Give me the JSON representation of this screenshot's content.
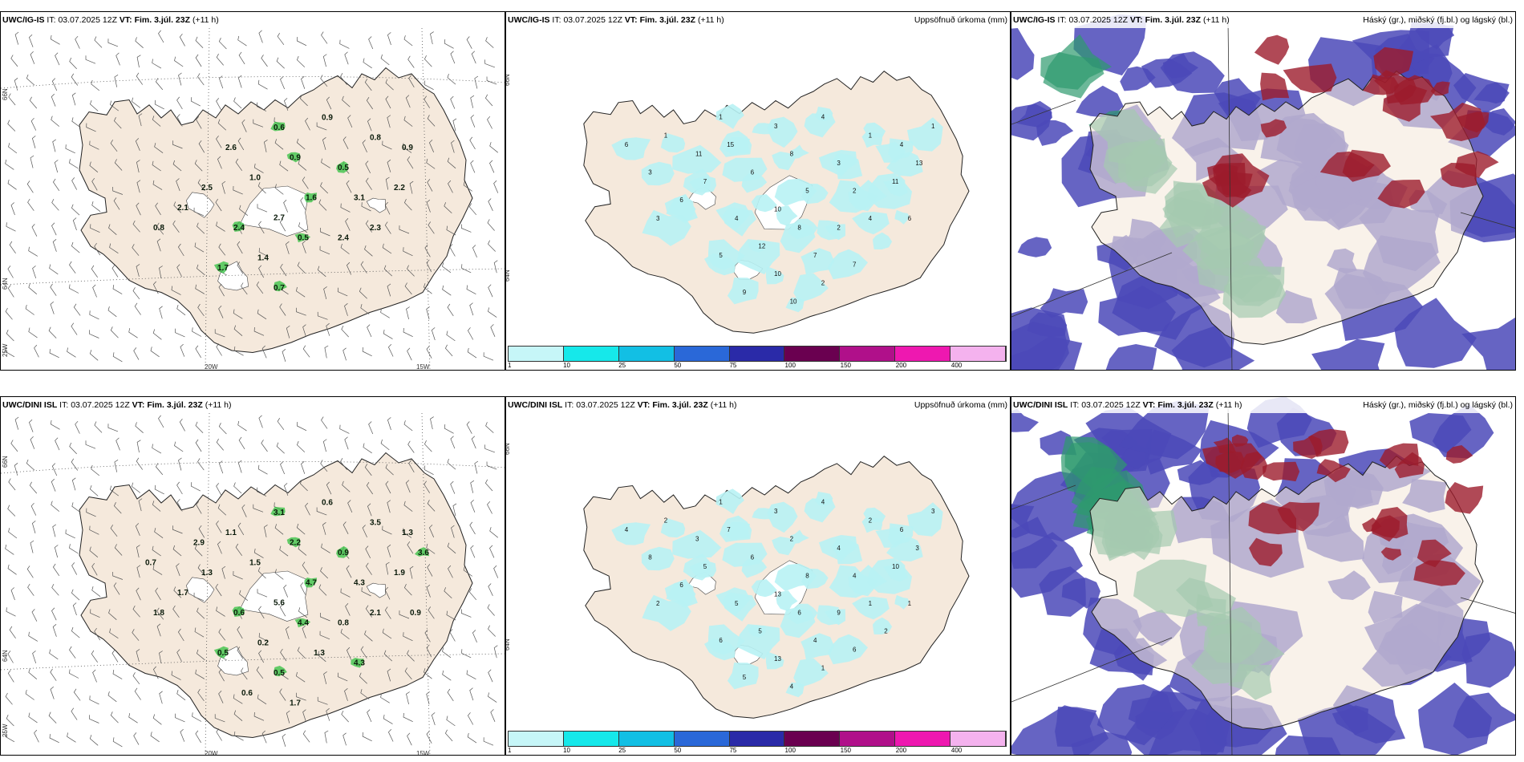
{
  "panels": [
    {
      "id": "p1",
      "model": "UWC/IG-IS",
      "it_label": "IT:",
      "it": "03.07.2025 12Z",
      "vt_label": "VT:",
      "vt": "Fim. 3.júl. 23Z",
      "lead": "(+11 h)",
      "right": ""
    },
    {
      "id": "p2",
      "model": "UWC/IG-IS",
      "it_label": "IT:",
      "it": "03.07.2025 12Z",
      "vt_label": "VT:",
      "vt": "Fim. 3.júl. 23Z",
      "lead": "(+11 h)",
      "right": "Uppsöfnuð úrkoma (mm)"
    },
    {
      "id": "p3",
      "model": "UWC/IG-IS",
      "it_label": "IT:",
      "it": "03.07.2025 12Z",
      "vt_label": "VT:",
      "vt": "Fim. 3.júl. 23Z",
      "lead": "(+11 h)",
      "right": "Háský (gr.), miðský (fj.bl.) og lágský (bl.)"
    },
    {
      "id": "p4",
      "model": "UWC/DINI ISL",
      "it_label": "IT:",
      "it": "03.07.2025 12Z",
      "vt_label": "VT:",
      "vt": "Fim. 3.júl. 23Z",
      "lead": "(+11 h)",
      "right": ""
    },
    {
      "id": "p5",
      "model": "UWC/DINI ISL",
      "it_label": "IT:",
      "it": "03.07.2025 12Z",
      "vt_label": "VT:",
      "vt": "Fim. 3.júl. 23Z",
      "lead": "(+11 h)",
      "right": "Uppsöfnuð úrkoma (mm)"
    },
    {
      "id": "p6",
      "model": "UWC/DINI ISL",
      "it_label": "IT:",
      "it": "03.07.2025 12Z",
      "vt_label": "VT:",
      "vt": "Fim. 3.júl. 23Z",
      "lead": "(+11 h)",
      "right": "Háský (gr.), miðský (fj.bl.) og lágský (bl.)"
    }
  ],
  "axis": {
    "lat_66": "66N",
    "lat_64": "64N",
    "lon_25": "25W",
    "lon_20": "20W",
    "lon_15": "15W"
  },
  "colorbar": {
    "labels": [
      "1",
      "10",
      "25",
      "50",
      "75",
      "100",
      "150",
      "200",
      "400"
    ],
    "colors": [
      "#c6f6f8",
      "#16e8ea",
      "#12bfe4",
      "#2a68d8",
      "#2a2aa8",
      "#6a0050",
      "#b0108a",
      "#ee18b0",
      "#f4b2ee"
    ]
  },
  "colors": {
    "land": "#f5e9dc",
    "precip": "#b8f2f4",
    "cloud_high": "#9c1c2c",
    "cloud_mid": "#2e9a6e",
    "cloud_low": "#4b49b9",
    "green": "#32c040"
  },
  "labels": {
    "p1": [
      "0.6",
      "0.9",
      "2.6",
      "0.9",
      "0.8",
      "1.0",
      "0.5",
      "0.9",
      "2.5",
      "1.6",
      "2.7",
      "3.1",
      "2.4",
      "2.2",
      "2.1",
      "0.5",
      "1.4",
      "2.4",
      "1.7",
      "2.3",
      "0.8",
      "0.7"
    ],
    "p2": [
      "3",
      "4",
      "15",
      "8",
      "1",
      "6",
      "3",
      "4",
      "7",
      "5",
      "10",
      "2",
      "4",
      "11",
      "6",
      "8",
      "12",
      "2",
      "5",
      "4",
      "3",
      "10",
      "7",
      "9",
      "13",
      "11",
      "3",
      "7",
      "10",
      "6",
      "6",
      "1",
      "1",
      "1",
      "2"
    ],
    "p4": [
      "3.1",
      "0.6",
      "1.1",
      "2.2",
      "3.5",
      "1.5",
      "0.9",
      "1.3",
      "1.3",
      "4.7",
      "5.6",
      "4.3",
      "0.6",
      "1.9",
      "1.7",
      "4.4",
      "0.2",
      "0.8",
      "0.5",
      "2.1",
      "1.8",
      "0.5",
      "1.3",
      "0.6",
      "3.6",
      "2.9",
      "0.7",
      "4.3",
      "1.7",
      "0.9"
    ],
    "p5": [
      "3",
      "4",
      "7",
      "2",
      "2",
      "6",
      "4",
      "6",
      "5",
      "8",
      "13",
      "4",
      "5",
      "10",
      "6",
      "6",
      "5",
      "9",
      "6",
      "1",
      "2",
      "13",
      "4",
      "5",
      "3",
      "3",
      "8",
      "6",
      "4",
      "1",
      "4",
      "2",
      "3",
      "1",
      "1",
      "2"
    ]
  }
}
